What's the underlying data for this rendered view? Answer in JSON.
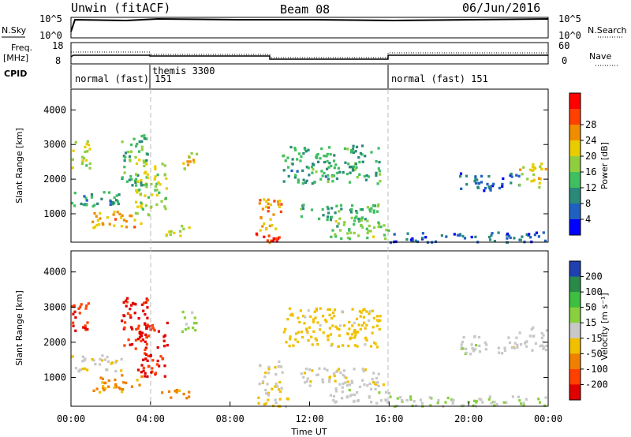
{
  "header": {
    "station": "Unwin (fitACF)",
    "beam": "Beam 08",
    "date": "06/Jun/2016"
  },
  "top_panels": {
    "nsky": {
      "label": "N.Sky",
      "ticks": [
        "10^5",
        "10^0"
      ],
      "right_ticks": [
        "10^5",
        "10^0"
      ],
      "right_label": "N.Search"
    },
    "freq": {
      "label_line1": "Freq.",
      "label_line2": "[MHz]",
      "ticks": [
        "18",
        "8"
      ],
      "right_ticks": [
        "60",
        "0"
      ],
      "right_label": "Nave"
    },
    "cpid": {
      "label": "CPID",
      "modes": [
        {
          "text": "normal (fast)  151",
          "start_hour": 0
        },
        {
          "text": "themis 3300",
          "start_hour": 4
        },
        {
          "text": "normal (fast)  151",
          "start_hour": 16
        }
      ]
    }
  },
  "chart_data": [
    {
      "type": "heatmap",
      "name": "power",
      "ylabel": "Slant Range [km]",
      "xlabel": "",
      "yticks": [
        "1000",
        "2000",
        "3000",
        "4000"
      ],
      "xlim": [
        0,
        24
      ],
      "ylim": [
        180,
        4600
      ],
      "colorbar": {
        "label": "Power [dB]",
        "ticks": [
          "4",
          "8",
          "12",
          "16",
          "20",
          "24",
          "28"
        ],
        "colors": [
          "#0000ff",
          "#2060c0",
          "#2a8a7a",
          "#3fbf5f",
          "#8fcf3f",
          "#e8cc00",
          "#f08c00",
          "#ff4000",
          "#ff0000"
        ]
      },
      "echo_regions": [
        {
          "t0": 0.0,
          "t1": 0.9,
          "r0": 2300,
          "r1": 3200,
          "value": 18
        },
        {
          "t0": 0.0,
          "t1": 2.5,
          "r0": 1200,
          "r1": 1700,
          "value": 10
        },
        {
          "t0": 1.0,
          "t1": 3.5,
          "r0": 600,
          "r1": 1100,
          "value": 22
        },
        {
          "t0": 2.5,
          "t1": 3.8,
          "r0": 1800,
          "r1": 3300,
          "value": 12
        },
        {
          "t0": 3.2,
          "t1": 4.8,
          "r0": 1000,
          "r1": 2600,
          "value": 17
        },
        {
          "t0": 4.5,
          "t1": 6.0,
          "r0": 400,
          "r1": 700,
          "value": 18
        },
        {
          "t0": 5.5,
          "t1": 6.3,
          "r0": 2300,
          "r1": 2900,
          "value": 20
        },
        {
          "t0": 9.2,
          "t1": 11.0,
          "r0": 200,
          "r1": 500,
          "value": 28
        },
        {
          "t0": 9.4,
          "t1": 10.6,
          "r0": 500,
          "r1": 1500,
          "value": 22
        },
        {
          "t0": 10.6,
          "t1": 15.5,
          "r0": 1900,
          "r1": 3000,
          "value": 11
        },
        {
          "t0": 11.5,
          "t1": 15.5,
          "r0": 800,
          "r1": 1300,
          "value": 12
        },
        {
          "t0": 13.0,
          "t1": 16.0,
          "r0": 300,
          "r1": 900,
          "value": 14
        },
        {
          "t0": 16.0,
          "t1": 24.0,
          "r0": 200,
          "r1": 500,
          "value": 6
        },
        {
          "t0": 19.5,
          "t1": 22.5,
          "r0": 1700,
          "r1": 2200,
          "value": 6
        },
        {
          "t0": 22.5,
          "t1": 24.0,
          "r0": 1800,
          "r1": 2500,
          "value": 18
        }
      ]
    },
    {
      "type": "heatmap",
      "name": "velocity",
      "ylabel": "Slant Range [km]",
      "xlabel": "Time UT",
      "yticks": [
        "1000",
        "2000",
        "3000",
        "4000"
      ],
      "xticks": [
        "00:00",
        "04:00",
        "08:00",
        "12:00",
        "16:00",
        "20:00",
        "00:00"
      ],
      "xlim": [
        0,
        24
      ],
      "ylim": [
        180,
        4600
      ],
      "colorbar": {
        "label": "Velocity [m s⁻¹]",
        "ticks": [
          "200",
          "100",
          "50",
          "15",
          "-15",
          "-50",
          "-100",
          "-200"
        ],
        "colors": [
          "#2040b0",
          "#2a8a4a",
          "#3fbf3f",
          "#88d040",
          "#c8c8c8",
          "#f0c000",
          "#f08000",
          "#ff4000",
          "#e00000"
        ]
      },
      "echo_regions": [
        {
          "t0": 0.0,
          "t1": 0.9,
          "r0": 2300,
          "r1": 3300,
          "value": -200
        },
        {
          "t0": 0.0,
          "t1": 2.5,
          "r0": 1200,
          "r1": 1700,
          "value": -15
        },
        {
          "t0": 1.0,
          "t1": 3.5,
          "r0": 600,
          "r1": 1100,
          "value": -100
        },
        {
          "t0": 2.5,
          "t1": 3.8,
          "r0": 1800,
          "r1": 3300,
          "value": -200
        },
        {
          "t0": 3.2,
          "t1": 4.8,
          "r0": 1000,
          "r1": 2600,
          "value": -200
        },
        {
          "t0": 4.5,
          "t1": 6.0,
          "r0": 400,
          "r1": 700,
          "value": -100
        },
        {
          "t0": 5.5,
          "t1": 6.3,
          "r0": 2300,
          "r1": 2900,
          "value": 50
        },
        {
          "t0": 9.2,
          "t1": 11.0,
          "r0": 200,
          "r1": 500,
          "value": -50
        },
        {
          "t0": 9.4,
          "t1": 10.6,
          "r0": 500,
          "r1": 1500,
          "value": -15
        },
        {
          "t0": 10.6,
          "t1": 15.5,
          "r0": 1900,
          "r1": 3000,
          "value": -50
        },
        {
          "t0": 11.5,
          "t1": 15.5,
          "r0": 800,
          "r1": 1300,
          "value": -15
        },
        {
          "t0": 13.0,
          "t1": 16.0,
          "r0": 300,
          "r1": 900,
          "value": 0
        },
        {
          "t0": 16.0,
          "t1": 24.0,
          "r0": 200,
          "r1": 500,
          "value": 30
        },
        {
          "t0": 19.5,
          "t1": 22.5,
          "r0": 1700,
          "r1": 2200,
          "value": 0
        },
        {
          "t0": 22.5,
          "t1": 24.0,
          "r0": 1800,
          "r1": 2500,
          "value": 0
        }
      ]
    }
  ]
}
